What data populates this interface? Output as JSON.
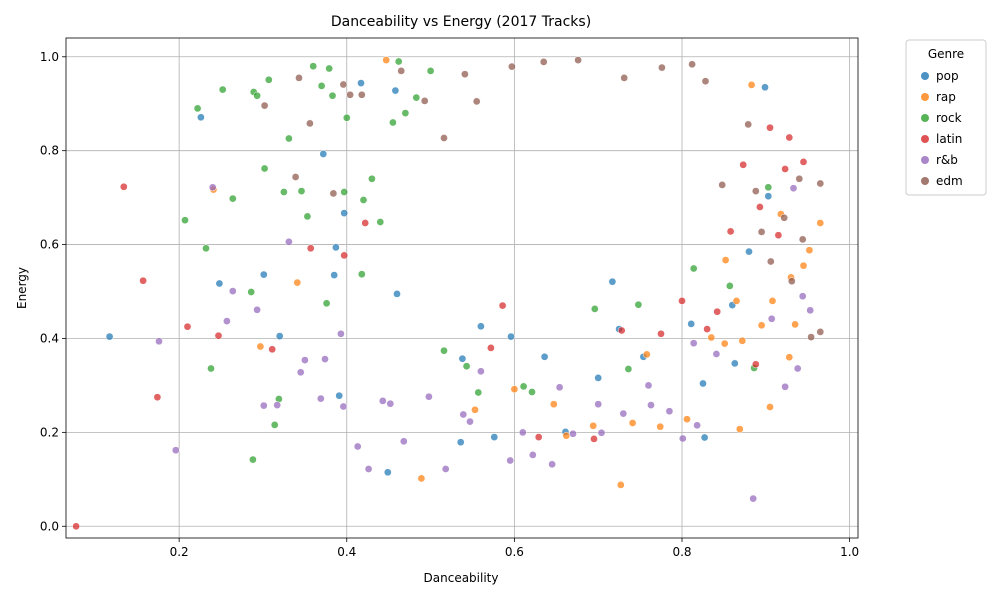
{
  "chart_data": {
    "type": "scatter",
    "title": "Danceability vs Energy (2017 Tracks)",
    "xlabel": "Danceability",
    "ylabel": "Energy",
    "xlim": [
      0.065,
      1.01
    ],
    "ylim": [
      -0.025,
      1.04
    ],
    "x_ticks": [
      "0.2",
      "0.4",
      "0.6",
      "0.8",
      "1.0"
    ],
    "y_ticks": [
      "0.0",
      "0.2",
      "0.4",
      "0.6",
      "0.8",
      "1.0"
    ],
    "grid": true,
    "legend": {
      "title": "Genre",
      "placement": "outside-right-top"
    },
    "series": [
      {
        "name": "pop",
        "color": "#1f77b4",
        "points": [
          [
            0.117,
            0.404
          ],
          [
            0.226,
            0.871
          ],
          [
            0.248,
            0.517
          ],
          [
            0.301,
            0.536
          ],
          [
            0.32,
            0.405
          ],
          [
            0.372,
            0.793
          ],
          [
            0.385,
            0.535
          ],
          [
            0.387,
            0.594
          ],
          [
            0.391,
            0.278
          ],
          [
            0.397,
            0.667
          ],
          [
            0.417,
            0.944
          ],
          [
            0.449,
            0.115
          ],
          [
            0.458,
            0.928
          ],
          [
            0.46,
            0.495
          ],
          [
            0.536,
            0.179
          ],
          [
            0.538,
            0.357
          ],
          [
            0.56,
            0.426
          ],
          [
            0.576,
            0.19
          ],
          [
            0.596,
            0.404
          ],
          [
            0.636,
            0.361
          ],
          [
            0.661,
            0.201
          ],
          [
            0.7,
            0.316
          ],
          [
            0.717,
            0.521
          ],
          [
            0.725,
            0.42
          ],
          [
            0.754,
            0.361
          ],
          [
            0.811,
            0.431
          ],
          [
            0.825,
            0.304
          ],
          [
            0.827,
            0.189
          ],
          [
            0.863,
            0.347
          ],
          [
            0.899,
            0.935
          ],
          [
            0.86,
            0.471
          ],
          [
            0.88,
            0.585
          ],
          [
            0.903,
            0.703
          ]
        ]
      },
      {
        "name": "rap",
        "color": "#ff7f0e",
        "points": [
          [
            0.241,
            0.717
          ],
          [
            0.297,
            0.383
          ],
          [
            0.341,
            0.519
          ],
          [
            0.447,
            0.993
          ],
          [
            0.489,
            0.102
          ],
          [
            0.553,
            0.248
          ],
          [
            0.6,
            0.292
          ],
          [
            0.647,
            0.26
          ],
          [
            0.662,
            0.193
          ],
          [
            0.694,
            0.214
          ],
          [
            0.727,
            0.088
          ],
          [
            0.741,
            0.22
          ],
          [
            0.758,
            0.366
          ],
          [
            0.774,
            0.212
          ],
          [
            0.806,
            0.228
          ],
          [
            0.835,
            0.402
          ],
          [
            0.851,
            0.389
          ],
          [
            0.869,
            0.207
          ],
          [
            0.883,
            0.94
          ],
          [
            0.895,
            0.428
          ],
          [
            0.905,
            0.254
          ],
          [
            0.928,
            0.36
          ],
          [
            0.952,
            0.588
          ],
          [
            0.965,
            0.646
          ],
          [
            0.93,
            0.53
          ],
          [
            0.918,
            0.665
          ],
          [
            0.872,
            0.395
          ],
          [
            0.908,
            0.48
          ],
          [
            0.945,
            0.555
          ],
          [
            0.852,
            0.567
          ],
          [
            0.865,
            0.48
          ],
          [
            0.935,
            0.43
          ]
        ]
      },
      {
        "name": "rock",
        "color": "#2ca02c",
        "points": [
          [
            0.207,
            0.652
          ],
          [
            0.222,
            0.89
          ],
          [
            0.232,
            0.592
          ],
          [
            0.238,
            0.336
          ],
          [
            0.252,
            0.93
          ],
          [
            0.264,
            0.698
          ],
          [
            0.286,
            0.499
          ],
          [
            0.288,
            0.142
          ],
          [
            0.289,
            0.925
          ],
          [
            0.293,
            0.917
          ],
          [
            0.302,
            0.762
          ],
          [
            0.307,
            0.951
          ],
          [
            0.314,
            0.216
          ],
          [
            0.319,
            0.271
          ],
          [
            0.325,
            0.712
          ],
          [
            0.331,
            0.826
          ],
          [
            0.346,
            0.714
          ],
          [
            0.353,
            0.66
          ],
          [
            0.36,
            0.98
          ],
          [
            0.37,
            0.938
          ],
          [
            0.376,
            0.475
          ],
          [
            0.379,
            0.975
          ],
          [
            0.383,
            0.917
          ],
          [
            0.397,
            0.712
          ],
          [
            0.4,
            0.87
          ],
          [
            0.418,
            0.537
          ],
          [
            0.42,
            0.695
          ],
          [
            0.44,
            0.648
          ],
          [
            0.455,
            0.86
          ],
          [
            0.462,
            0.99
          ],
          [
            0.483,
            0.913
          ],
          [
            0.516,
            0.374
          ],
          [
            0.543,
            0.341
          ],
          [
            0.557,
            0.285
          ],
          [
            0.611,
            0.298
          ],
          [
            0.621,
            0.286
          ],
          [
            0.696,
            0.463
          ],
          [
            0.736,
            0.335
          ],
          [
            0.748,
            0.472
          ],
          [
            0.814,
            0.549
          ],
          [
            0.886,
            0.337
          ],
          [
            0.903,
            0.722
          ],
          [
            0.857,
            0.512
          ],
          [
            0.43,
            0.74
          ],
          [
            0.47,
            0.88
          ],
          [
            0.5,
            0.97
          ]
        ]
      },
      {
        "name": "latin",
        "color": "#d62728",
        "points": [
          [
            0.077,
            0.0
          ],
          [
            0.134,
            0.723
          ],
          [
            0.157,
            0.523
          ],
          [
            0.174,
            0.275
          ],
          [
            0.21,
            0.425
          ],
          [
            0.247,
            0.406
          ],
          [
            0.311,
            0.377
          ],
          [
            0.357,
            0.592
          ],
          [
            0.397,
            0.577
          ],
          [
            0.422,
            0.646
          ],
          [
            0.572,
            0.38
          ],
          [
            0.586,
            0.47
          ],
          [
            0.629,
            0.19
          ],
          [
            0.695,
            0.186
          ],
          [
            0.728,
            0.417
          ],
          [
            0.775,
            0.41
          ],
          [
            0.842,
            0.457
          ],
          [
            0.858,
            0.628
          ],
          [
            0.873,
            0.77
          ],
          [
            0.893,
            0.68
          ],
          [
            0.905,
            0.849
          ],
          [
            0.923,
            0.761
          ],
          [
            0.928,
            0.828
          ],
          [
            0.945,
            0.776
          ],
          [
            0.888,
            0.345
          ],
          [
            0.8,
            0.48
          ],
          [
            0.83,
            0.42
          ],
          [
            0.915,
            0.62
          ]
        ]
      },
      {
        "name": "r&b",
        "color": "#9467bd",
        "points": [
          [
            0.176,
            0.394
          ],
          [
            0.196,
            0.162
          ],
          [
            0.24,
            0.722
          ],
          [
            0.257,
            0.437
          ],
          [
            0.264,
            0.501
          ],
          [
            0.293,
            0.461
          ],
          [
            0.301,
            0.257
          ],
          [
            0.317,
            0.258
          ],
          [
            0.331,
            0.606
          ],
          [
            0.345,
            0.328
          ],
          [
            0.35,
            0.354
          ],
          [
            0.369,
            0.272
          ],
          [
            0.374,
            0.356
          ],
          [
            0.393,
            0.41
          ],
          [
            0.396,
            0.255
          ],
          [
            0.413,
            0.17
          ],
          [
            0.426,
            0.122
          ],
          [
            0.443,
            0.267
          ],
          [
            0.452,
            0.261
          ],
          [
            0.468,
            0.181
          ],
          [
            0.498,
            0.276
          ],
          [
            0.518,
            0.122
          ],
          [
            0.539,
            0.238
          ],
          [
            0.547,
            0.223
          ],
          [
            0.595,
            0.14
          ],
          [
            0.622,
            0.152
          ],
          [
            0.645,
            0.132
          ],
          [
            0.654,
            0.296
          ],
          [
            0.67,
            0.197
          ],
          [
            0.704,
            0.199
          ],
          [
            0.73,
            0.24
          ],
          [
            0.763,
            0.258
          ],
          [
            0.801,
            0.187
          ],
          [
            0.814,
            0.39
          ],
          [
            0.841,
            0.367
          ],
          [
            0.885,
            0.059
          ],
          [
            0.907,
            0.442
          ],
          [
            0.923,
            0.297
          ],
          [
            0.938,
            0.336
          ],
          [
            0.944,
            0.49
          ],
          [
            0.933,
            0.72
          ],
          [
            0.953,
            0.46
          ],
          [
            0.818,
            0.215
          ],
          [
            0.785,
            0.245
          ],
          [
            0.76,
            0.3
          ],
          [
            0.7,
            0.26
          ],
          [
            0.61,
            0.2
          ],
          [
            0.56,
            0.33
          ]
        ]
      },
      {
        "name": "edm",
        "color": "#8c564b",
        "points": [
          [
            0.302,
            0.896
          ],
          [
            0.339,
            0.744
          ],
          [
            0.343,
            0.955
          ],
          [
            0.356,
            0.858
          ],
          [
            0.384,
            0.709
          ],
          [
            0.396,
            0.941
          ],
          [
            0.404,
            0.919
          ],
          [
            0.418,
            0.919
          ],
          [
            0.465,
            0.97
          ],
          [
            0.493,
            0.906
          ],
          [
            0.516,
            0.827
          ],
          [
            0.541,
            0.963
          ],
          [
            0.555,
            0.905
          ],
          [
            0.597,
            0.979
          ],
          [
            0.635,
            0.989
          ],
          [
            0.676,
            0.993
          ],
          [
            0.731,
            0.955
          ],
          [
            0.776,
            0.977
          ],
          [
            0.812,
            0.984
          ],
          [
            0.828,
            0.948
          ],
          [
            0.848,
            0.727
          ],
          [
            0.879,
            0.856
          ],
          [
            0.888,
            0.714
          ],
          [
            0.906,
            0.564
          ],
          [
            0.931,
            0.522
          ],
          [
            0.944,
            0.611
          ],
          [
            0.954,
            0.403
          ],
          [
            0.965,
            0.414
          ],
          [
            0.965,
            0.73
          ],
          [
            0.895,
            0.627
          ],
          [
            0.922,
            0.657
          ],
          [
            0.94,
            0.74
          ]
        ]
      }
    ]
  }
}
